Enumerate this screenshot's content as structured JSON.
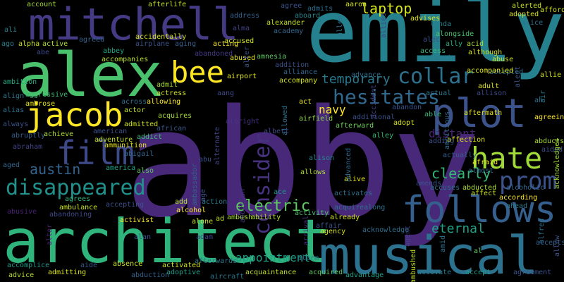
{
  "words": [
    {
      "text": "abby",
      "color": "#482878"
    },
    {
      "text": "emily",
      "color": "#26818e"
    },
    {
      "text": "architect",
      "color": "#2fb47c"
    },
    {
      "text": "musical",
      "color": "#2c718e"
    },
    {
      "text": "alex",
      "color": "#4ac16d"
    },
    {
      "text": "mitchell",
      "color": "#443b84"
    },
    {
      "text": "follows",
      "color": "#355f8d"
    },
    {
      "text": "plot",
      "color": "#3b528b"
    },
    {
      "text": "jacob",
      "color": "#fde725"
    },
    {
      "text": "bee",
      "color": "#fde725"
    },
    {
      "text": "film",
      "color": "#3e4989"
    },
    {
      "text": "hate",
      "color": "#a0da39"
    },
    {
      "text": "disappeared",
      "color": "#21918c"
    },
    {
      "text": "prom",
      "color": "#3b528b"
    },
    {
      "text": "collar",
      "color": "#2c718e"
    },
    {
      "text": "consider",
      "color": "#46327e"
    },
    {
      "text": "hesitates",
      "color": "#31688e"
    },
    {
      "text": "laptop",
      "color": "#d2e21b"
    },
    {
      "text": "electric",
      "color": "#5ec962"
    },
    {
      "text": "austin",
      "color": "#33638d"
    },
    {
      "text": "eternal",
      "color": "#1fa187"
    },
    {
      "text": "clearly",
      "color": "#35b779"
    },
    {
      "text": "appointment",
      "color": "#1f9e89"
    },
    {
      "text": "temporary",
      "color": "#2a788e"
    },
    {
      "text": "navy",
      "color": "#fde725"
    },
    {
      "text": "distant",
      "color": "#482576"
    },
    {
      "text": "ali",
      "color": "#25848e"
    },
    {
      "text": "ago",
      "color": "#26828e"
    },
    {
      "text": "abe",
      "color": "#3e4989"
    },
    {
      "text": "alpha",
      "color": "#c8e020"
    },
    {
      "text": "active",
      "color": "#addc30"
    },
    {
      "text": "ambition",
      "color": "#25ab82"
    },
    {
      "text": "align",
      "color": "#2a788e"
    },
    {
      "text": "aggressive",
      "color": "#3fbc73"
    },
    {
      "text": "ambrose",
      "color": "#e5e419"
    },
    {
      "text": "alias",
      "color": "#2e6e8e"
    },
    {
      "text": "always",
      "color": "#3b528b"
    },
    {
      "text": "abruptly",
      "color": "#355f8d"
    },
    {
      "text": "abraham",
      "color": "#414487"
    },
    {
      "text": "aged",
      "color": "#31688e"
    },
    {
      "text": "achieve",
      "color": "#addc30"
    },
    {
      "text": "abusive",
      "color": "#482071"
    },
    {
      "text": "accomplice",
      "color": "#1f9a8a"
    },
    {
      "text": "advice",
      "color": "#b5de2b"
    },
    {
      "text": "admitting",
      "color": "#d8e219"
    },
    {
      "text": "abandoning",
      "color": "#3e4989"
    },
    {
      "text": "agrees",
      "color": "#2db27d"
    },
    {
      "text": "ambulance",
      "color": "#cde11d"
    },
    {
      "text": "aide",
      "color": "#38588c"
    },
    {
      "text": "account",
      "color": "#a8db34"
    },
    {
      "text": "afterlife",
      "color": "#c0df25"
    },
    {
      "text": "accidentally",
      "color": "#d5e21a"
    },
    {
      "text": "airplane",
      "color": "#3b528b"
    },
    {
      "text": "agreed",
      "color": "#34618d"
    },
    {
      "text": "aging",
      "color": "#355f8d"
    },
    {
      "text": "abbey",
      "color": "#20a386"
    },
    {
      "text": "accompanies",
      "color": "#bddf26"
    },
    {
      "text": "acting",
      "color": "#fde725"
    },
    {
      "text": "abused",
      "color": "#e5e419"
    },
    {
      "text": "accused",
      "color": "#d2e21b"
    },
    {
      "text": "abandoned",
      "color": "#443983"
    },
    {
      "text": "address",
      "color": "#35608d"
    },
    {
      "text": "alexander",
      "color": "#c5e021"
    },
    {
      "text": "academy",
      "color": "#31688e"
    },
    {
      "text": "aboard",
      "color": "#25858e"
    },
    {
      "text": "agree",
      "color": "#3b528b"
    },
    {
      "text": "admits",
      "color": "#2e6f8e"
    },
    {
      "text": "aaron",
      "color": "#d5e21a"
    },
    {
      "text": "allen",
      "color": "#2c728e"
    },
    {
      "text": "addition",
      "color": "#3b518b"
    },
    {
      "text": "alliance",
      "color": "#31688e"
    },
    {
      "text": "accompany",
      "color": "#d2e21b"
    },
    {
      "text": "airport",
      "color": "#dde318"
    },
    {
      "text": "allowed",
      "color": "#2c738e"
    },
    {
      "text": "act",
      "color": "#e7e419"
    },
    {
      "text": "airfield",
      "color": "#8bd646"
    },
    {
      "text": "afterward",
      "color": "#6ccd5a"
    },
    {
      "text": "additional",
      "color": "#3b528b"
    },
    {
      "text": "adopt",
      "color": "#d8e219"
    },
    {
      "text": "able",
      "color": "#33b679"
    },
    {
      "text": "abandon",
      "color": "#39558c"
    },
    {
      "text": "advance",
      "color": "#2c718e"
    },
    {
      "text": "accident",
      "color": "#414487"
    },
    {
      "text": "alley",
      "color": "#38b977"
    },
    {
      "text": "albert",
      "color": "#3f4788"
    },
    {
      "text": "albright",
      "color": "#453581"
    },
    {
      "text": "aang",
      "color": "#3e4989"
    },
    {
      "text": "alternate",
      "color": "#414487"
    },
    {
      "text": "ambassador",
      "color": "#34618d"
    },
    {
      "text": "actress",
      "color": "#d2e21b"
    },
    {
      "text": "actor",
      "color": "#bddf26"
    },
    {
      "text": "admit",
      "color": "#a8db34"
    },
    {
      "text": "allowing",
      "color": "#fde725"
    },
    {
      "text": "across",
      "color": "#2d708e"
    },
    {
      "text": "acquires",
      "color": "#a5db36"
    },
    {
      "text": "admitted",
      "color": "#cde11d"
    },
    {
      "text": "american",
      "color": "#3b528b"
    },
    {
      "text": "african",
      "color": "#37598c"
    },
    {
      "text": "addict",
      "color": "#3fbc73"
    },
    {
      "text": "adventure",
      "color": "#c2df23"
    },
    {
      "text": "ammunition",
      "color": "#e5e419"
    },
    {
      "text": "abigail",
      "color": "#31688e"
    },
    {
      "text": "america",
      "color": "#20a386"
    },
    {
      "text": "also",
      "color": "#5ec962"
    },
    {
      "text": "abu",
      "color": "#3b528b"
    },
    {
      "text": "alison",
      "color": "#26828e"
    },
    {
      "text": "abortion",
      "color": "#46337f"
    },
    {
      "text": "allows",
      "color": "#addc30"
    },
    {
      "text": "alive",
      "color": "#e5e419"
    },
    {
      "text": "activates",
      "color": "#2e6e8e"
    },
    {
      "text": "acquirealong",
      "color": "#2c718e"
    },
    {
      "text": "already",
      "color": "#d5e21a"
    },
    {
      "text": "activity",
      "color": "#4ac16d"
    },
    {
      "text": "ace",
      "color": "#21918c"
    },
    {
      "text": "ability",
      "color": "#b5de2b"
    },
    {
      "text": "ambush",
      "color": "#a8db34"
    },
    {
      "text": "accepting",
      "color": "#3b528b"
    },
    {
      "text": "add",
      "color": "#addc30"
    },
    {
      "text": "alcohol",
      "color": "#fde725"
    },
    {
      "text": "action",
      "color": "#2a788e"
    },
    {
      "text": "activist",
      "color": "#fde725"
    },
    {
      "text": "alone",
      "color": "#cde11d"
    },
    {
      "text": "ad",
      "color": "#c2df23"
    },
    {
      "text": "alan",
      "color": "#3b528b"
    },
    {
      "text": "adam",
      "color": "#414487"
    },
    {
      "text": "absence",
      "color": "#c8e020"
    },
    {
      "text": "activated",
      "color": "#cde11d"
    },
    {
      "text": "abduction",
      "color": "#33638d"
    },
    {
      "text": "adoptive",
      "color": "#1fa088"
    },
    {
      "text": "afterwards",
      "color": "#29798e"
    },
    {
      "text": "aircraft",
      "color": "#2a788e"
    },
    {
      "text": "acquaintance",
      "color": "#c0df25"
    },
    {
      "text": "acquired",
      "color": "#5ec962"
    },
    {
      "text": "arrival",
      "color": "#46337f"
    },
    {
      "text": "affair",
      "color": "#3b528b"
    },
    {
      "text": "agency",
      "color": "#d5e21a"
    },
    {
      "text": "alarm",
      "color": "#29798e"
    },
    {
      "text": "advantage",
      "color": "#1f9e89"
    },
    {
      "text": "acknowledge",
      "color": "#2e6f8e"
    },
    {
      "text": "adult",
      "color": "#dde318"
    },
    {
      "text": "allison",
      "color": "#3e4989"
    },
    {
      "text": "actual",
      "color": "#2a788e"
    },
    {
      "text": "aftermath",
      "color": "#e5e419"
    },
    {
      "text": "ambitious",
      "color": "#31688e"
    },
    {
      "text": "affection",
      "color": "#dde318"
    },
    {
      "text": "adding",
      "color": "#3b528b"
    },
    {
      "text": "actually",
      "color": "#355f8d"
    },
    {
      "text": "afraid",
      "color": "#e5e419"
    },
    {
      "text": "almost",
      "color": "#31688e"
    },
    {
      "text": "amends",
      "color": "#3b528b"
    },
    {
      "text": "accuses",
      "color": "#2c718e"
    },
    {
      "text": "abducted",
      "color": "#addc30"
    },
    {
      "text": "affect",
      "color": "#cde11d"
    },
    {
      "text": "agent",
      "color": "#414487"
    },
    {
      "text": "amid",
      "color": "#2c718e"
    },
    {
      "text": "ambushed",
      "color": "#c0df25"
    },
    {
      "text": "activate",
      "color": "#2a788e"
    },
    {
      "text": "accept",
      "color": "#1f9e89"
    },
    {
      "text": "agreement",
      "color": "#3b528b"
    },
    {
      "text": "al",
      "color": "#5ec962"
    },
    {
      "text": "according",
      "color": "#fde725"
    },
    {
      "text": "ahead",
      "color": "#29798e"
    },
    {
      "text": "alfred",
      "color": "#2c718e"
    },
    {
      "text": "accepts",
      "color": "#34618d"
    },
    {
      "text": "allow",
      "color": "#3b528b"
    },
    {
      "text": "alcoholic",
      "color": "#31688e"
    },
    {
      "text": "abducts",
      "color": "#addc30"
    },
    {
      "text": "aided",
      "color": "#3b528b"
    },
    {
      "text": "acknowledges",
      "color": "#a0da39"
    },
    {
      "text": "agreeing",
      "color": "#fde725"
    },
    {
      "text": "ah",
      "color": "#2c718e"
    },
    {
      "text": "allie",
      "color": "#cde11d"
    },
    {
      "text": "air",
      "color": "#2a788e"
    },
    {
      "text": "abuse",
      "color": "#cde11d"
    },
    {
      "text": "accepted",
      "color": "#2c718e"
    },
    {
      "text": "alert",
      "color": "#3b528b"
    },
    {
      "text": "accompanied",
      "color": "#dde318"
    },
    {
      "text": "although",
      "color": "#d5e21a"
    },
    {
      "text": "ally",
      "color": "#2ab07f"
    },
    {
      "text": "acid",
      "color": "#addc30"
    },
    {
      "text": "access",
      "color": "#35b779"
    },
    {
      "text": "alamein",
      "color": "#2a788e"
    },
    {
      "text": "alec",
      "color": "#3b528b"
    },
    {
      "text": "alongside",
      "color": "#4ac16d"
    },
    {
      "text": "linda",
      "color": "#26828e"
    },
    {
      "text": "advises",
      "color": "#dde318"
    },
    {
      "text": "alerted",
      "color": "#c8e020"
    },
    {
      "text": "adopted",
      "color": "#d8e219"
    },
    {
      "text": "afford",
      "color": "#cde11d"
    },
    {
      "text": "alice",
      "color": "#2c718e"
    },
    {
      "text": "alter",
      "color": "#3b528b"
    },
    {
      "text": "allies",
      "color": "#3e4989"
    },
    {
      "text": "amnesia",
      "color": "#5ec962"
    },
    {
      "text": "alma",
      "color": "#414487"
    },
    {
      "text": "age",
      "color": "#3b528b"
    },
    {
      "text": "advanced",
      "color": "#31688e"
    },
    {
      "text": "altar",
      "color": "#482071"
    }
  ]
}
